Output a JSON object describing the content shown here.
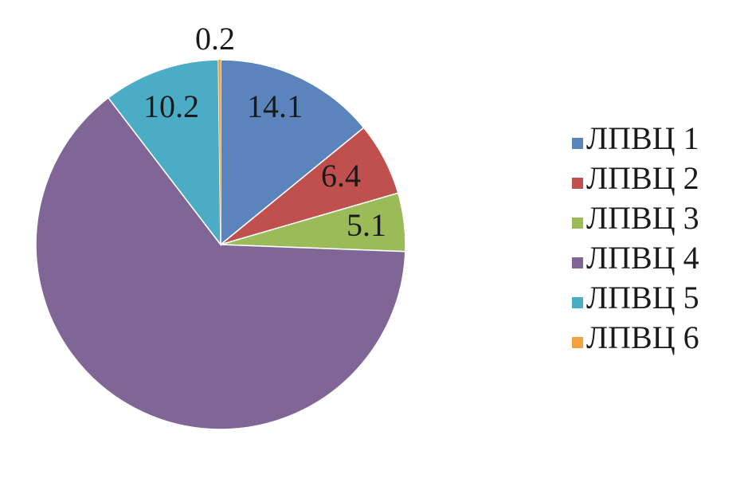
{
  "chart_data": {
    "type": "pie",
    "categories": [
      "ЛПВЦ 1",
      "ЛПВЦ 2",
      "ЛПВЦ 3",
      "ЛПВЦ 4",
      "ЛПВЦ 5",
      "ЛПВЦ 6"
    ],
    "values": [
      14.1,
      6.4,
      5.1,
      64.0,
      10.2,
      0.2
    ],
    "data_labels": [
      "14.1",
      "6.4",
      "5.1",
      "",
      "10.2",
      "0.2"
    ],
    "colors": [
      "#5b84bc",
      "#c0504d",
      "#9bbb59",
      "#7f6697",
      "#4bacc6",
      "#f2a240"
    ],
    "start_angle_deg": 0,
    "direction": "clockwise",
    "legend_position": "right"
  }
}
